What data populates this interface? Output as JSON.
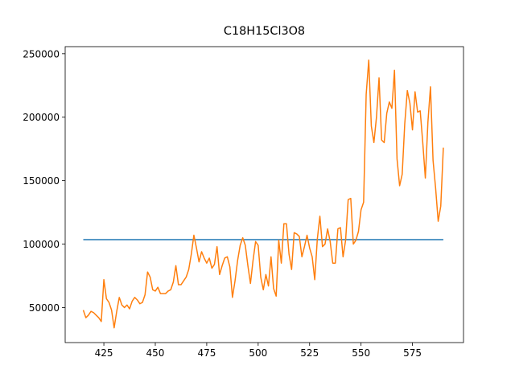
{
  "chart_data": {
    "type": "line",
    "title": "C18H15Cl3O8",
    "x": [
      415,
      416.25,
      417.5,
      418.75,
      420,
      421.25,
      422.5,
      423.75,
      425,
      426.25,
      427.5,
      428.75,
      430,
      431.25,
      432.5,
      433.75,
      435,
      436.25,
      437.5,
      438.75,
      440,
      441.25,
      442.5,
      443.75,
      445,
      446.25,
      447.5,
      448.75,
      450,
      451.25,
      452.5,
      453.75,
      455,
      456.25,
      457.5,
      458.75,
      460,
      461.25,
      462.5,
      463.75,
      465,
      466.25,
      467.5,
      468.75,
      470,
      471.25,
      472.5,
      473.75,
      475,
      476.25,
      477.5,
      478.75,
      480,
      481.25,
      482.5,
      483.75,
      485,
      486.25,
      487.5,
      488.75,
      490,
      491.25,
      492.5,
      493.75,
      495,
      496.25,
      497.5,
      498.75,
      500,
      501.25,
      502.5,
      503.75,
      505,
      506.25,
      507.5,
      508.75,
      510,
      511.25,
      512.5,
      513.75,
      515,
      516.25,
      517.5,
      518.75,
      520,
      521.25,
      522.5,
      523.75,
      525,
      526.25,
      527.5,
      528.75,
      530,
      531.25,
      532.5,
      533.75,
      535,
      536.25,
      537.5,
      538.75,
      540,
      541.25,
      542.5,
      543.75,
      545,
      546.25,
      547.5,
      548.75,
      550,
      551.25,
      552.5,
      553.75,
      555,
      556.25,
      557.5,
      558.75,
      560,
      561.25,
      562.5,
      563.75,
      565,
      566.25,
      567.5,
      568.75,
      570,
      571.25,
      572.5,
      573.75,
      575,
      576.25,
      577.5,
      578.75,
      580,
      581.25,
      582.5,
      583.75,
      585,
      586.25,
      587.5,
      588.75,
      590
    ],
    "series": [
      {
        "color": "#1f77b4",
        "x": [
          415,
          590
        ],
        "values": [
          103500,
          103500
        ]
      },
      {
        "color": "#ff7f0e",
        "values": [
          48000,
          42000,
          44000,
          47000,
          46000,
          44000,
          42000,
          39000,
          72000,
          57000,
          54000,
          48000,
          34000,
          47000,
          58000,
          52000,
          50000,
          52000,
          49000,
          55000,
          58000,
          56000,
          53000,
          54000,
          60000,
          78000,
          74000,
          64000,
          63000,
          66000,
          61000,
          61000,
          61000,
          63000,
          64000,
          70000,
          83000,
          68000,
          68000,
          71000,
          74000,
          80000,
          92000,
          107000,
          97000,
          86000,
          94000,
          89000,
          85000,
          89000,
          81000,
          84000,
          98000,
          76000,
          83000,
          89000,
          90000,
          82000,
          58000,
          71000,
          87000,
          99000,
          105000,
          99000,
          83000,
          69000,
          87000,
          102000,
          99000,
          74000,
          64000,
          76000,
          67000,
          90000,
          65000,
          59000,
          103000,
          85000,
          116000,
          116000,
          92000,
          80000,
          109000,
          108000,
          106000,
          90000,
          98000,
          107000,
          97000,
          90000,
          72000,
          104000,
          122000,
          98000,
          100000,
          112000,
          102000,
          85000,
          85000,
          112000,
          113000,
          90000,
          103000,
          135000,
          136000,
          100000,
          103000,
          110000,
          127000,
          133000,
          218000,
          245000,
          193000,
          180000,
          200000,
          231000,
          182000,
          180000,
          203000,
          212000,
          207000,
          237000,
          167000,
          146000,
          155000,
          195000,
          221000,
          211000,
          190000,
          220000,
          204000,
          205000,
          180000,
          152000,
          196000,
          224000,
          166000,
          144000,
          118000,
          130000,
          176000
        ]
      }
    ],
    "xlim": [
      406.2,
      599.8
    ],
    "ylim": [
      22400,
      255600
    ],
    "xticks": [
      425,
      450,
      475,
      500,
      525,
      550,
      575
    ],
    "yticks": [
      50000,
      100000,
      150000,
      200000,
      250000
    ]
  }
}
